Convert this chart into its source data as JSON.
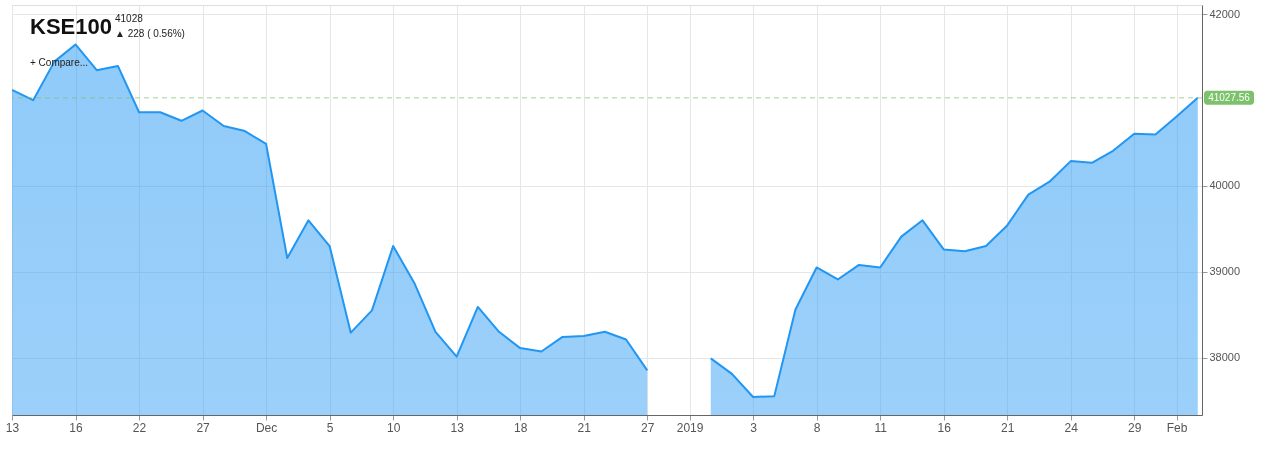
{
  "chart_data": {
    "type": "area",
    "title": "KSE100",
    "annotations": [
      "41028",
      "▲ 228 ( 0.56%)",
      "+ Compare..."
    ],
    "categories": [
      "13",
      null,
      null,
      "16",
      null,
      null,
      "22",
      null,
      null,
      "27",
      null,
      null,
      "Dec",
      null,
      null,
      "5",
      null,
      null,
      "10",
      null,
      null,
      "13",
      null,
      null,
      "18",
      null,
      null,
      "21",
      null,
      null,
      "27",
      null,
      "2019",
      null,
      null,
      "3",
      null,
      null,
      "8",
      null,
      null,
      "11",
      null,
      null,
      "16",
      null,
      null,
      "21",
      null,
      null,
      "24",
      null,
      null,
      "29",
      null,
      "Feb",
      null
    ],
    "series": [
      {
        "color": "#2196f3",
        "values": [
          41120,
          41000,
          41450,
          41650,
          41350,
          41400,
          40860,
          40860,
          40760,
          40880,
          40700,
          40640,
          40490,
          39160,
          39600,
          39300,
          38290,
          38550,
          39300,
          38870,
          38300,
          38010,
          38590,
          38300,
          38110,
          38070,
          38240,
          38250,
          38300,
          38210,
          37850,
          null,
          null,
          37990,
          37810,
          37540,
          37550,
          38560,
          39050,
          38910,
          39080,
          39050,
          39410,
          39600,
          39260,
          39240,
          39300,
          39540,
          39900,
          40050,
          40290,
          40270,
          40410,
          40610,
          40600,
          40810,
          41030
        ]
      }
    ],
    "ylim": [
      37330,
      42110
    ],
    "yticks": [
      38000,
      39000,
      40000,
      42000
    ],
    "grid": true,
    "ref_lines": [
      {
        "axis": "y",
        "value": 41027.56,
        "label": "41027.56",
        "color": "#7cc16b",
        "line_style": "dashed"
      }
    ]
  }
}
